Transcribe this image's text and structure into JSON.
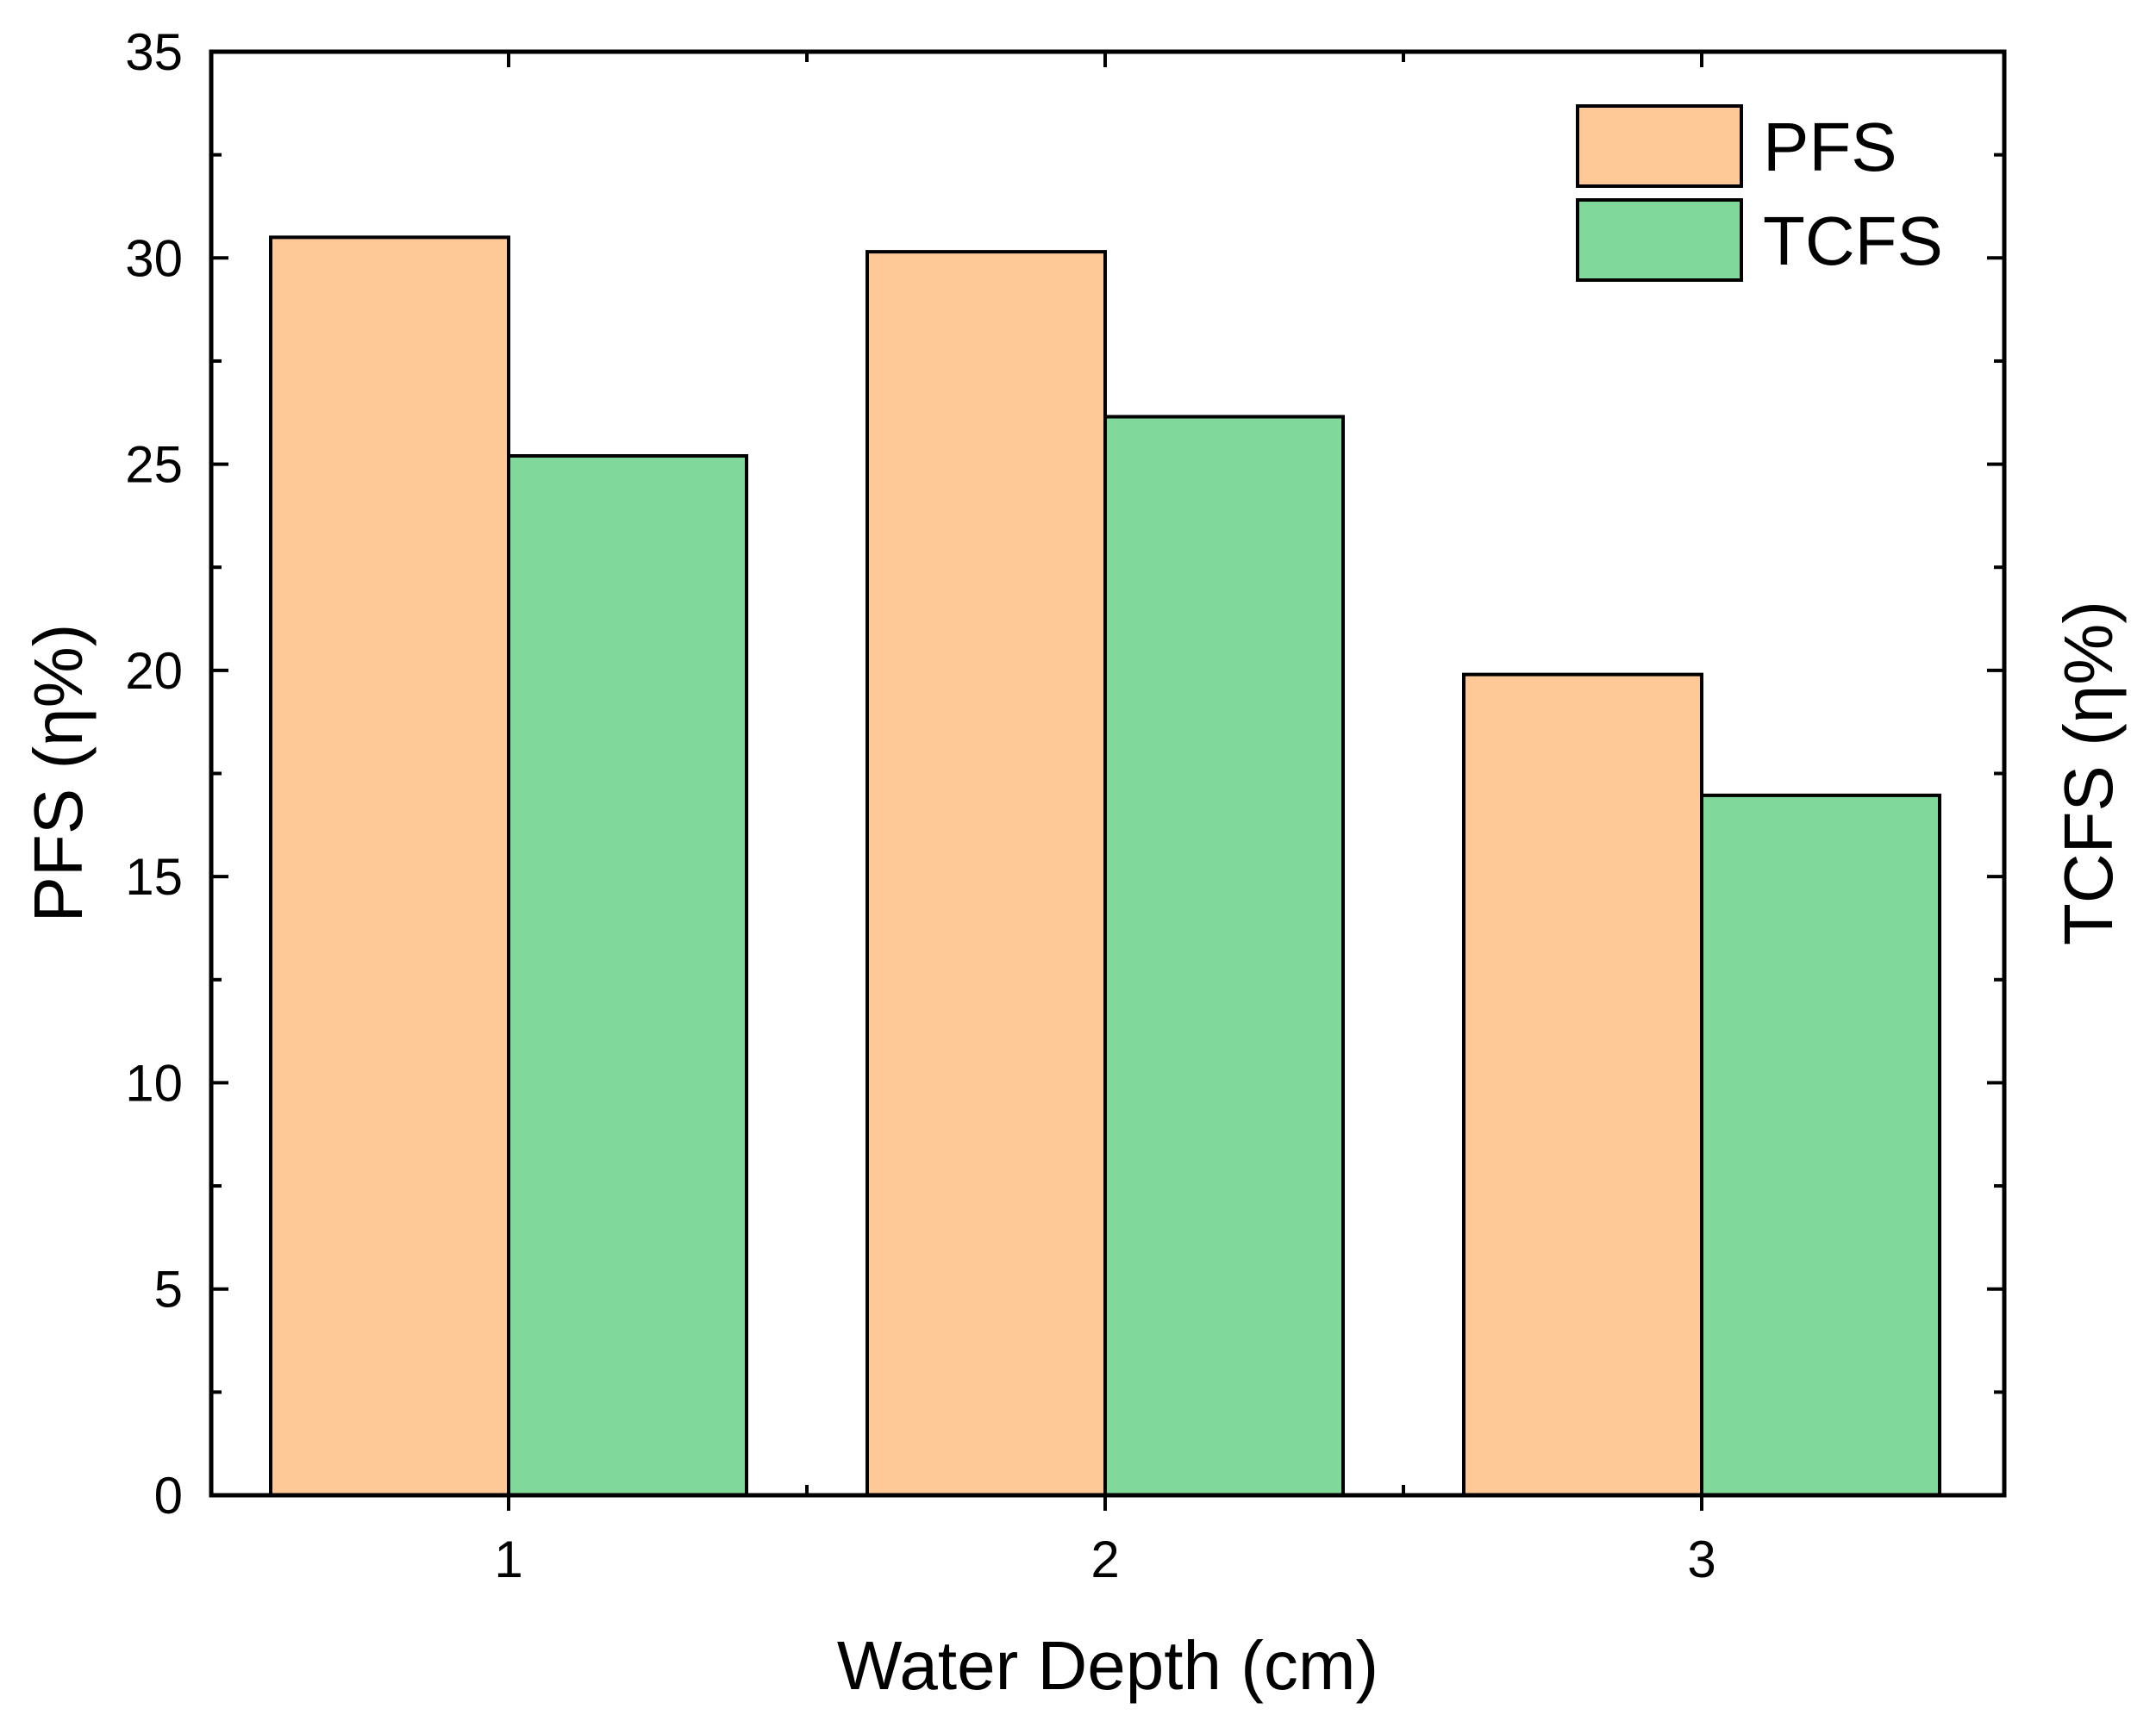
{
  "chart_data": {
    "type": "bar",
    "categories": [
      "1",
      "2",
      "3"
    ],
    "series": [
      {
        "name": "PFS",
        "values": [
          30.5,
          30.15,
          19.9
        ],
        "color": "#FFC896"
      },
      {
        "name": "TCFS",
        "values": [
          25.2,
          26.15,
          16.97
        ],
        "color": "#80D89A"
      }
    ],
    "xlabel": "Water Depth (cm)",
    "ylabel": "PFS (η%)",
    "ylabel_right": "TCFS (η%)",
    "ylim": [
      0,
      35
    ],
    "yticks": [
      "0",
      "5",
      "10",
      "15",
      "20",
      "25",
      "30",
      "35"
    ],
    "grid": false,
    "legend_position": "top-right"
  }
}
